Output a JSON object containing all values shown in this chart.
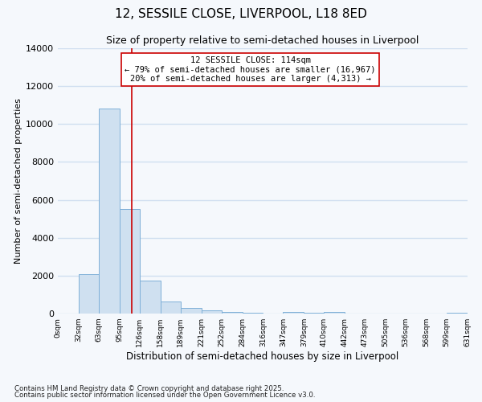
{
  "title": "12, SESSILE CLOSE, LIVERPOOL, L18 8ED",
  "subtitle": "Size of property relative to semi-detached houses in Liverpool",
  "xlabel": "Distribution of semi-detached houses by size in Liverpool",
  "ylabel": "Number of semi-detached properties",
  "bar_color": "#cfe0f0",
  "bar_edge_color": "#7fb0d8",
  "vline_value": 114,
  "vline_color": "#cc0000",
  "annotation_title": "12 SESSILE CLOSE: 114sqm",
  "annotation_line1": "← 79% of semi-detached houses are smaller (16,967)",
  "annotation_line2": "20% of semi-detached houses are larger (4,313) →",
  "bin_edges": [
    0,
    32,
    63,
    95,
    126,
    158,
    189,
    221,
    252,
    284,
    316,
    347,
    379,
    410,
    442,
    473,
    505,
    536,
    568,
    599,
    631
  ],
  "bin_counts": [
    0,
    2100,
    10800,
    5500,
    1750,
    650,
    310,
    150,
    80,
    30,
    10,
    100,
    50,
    70,
    20,
    10,
    0,
    0,
    0,
    50
  ],
  "ylim": [
    0,
    14000
  ],
  "yticks": [
    0,
    2000,
    4000,
    6000,
    8000,
    10000,
    12000,
    14000
  ],
  "background_color": "#f5f8fc",
  "grid_color": "#d0dff0",
  "footnote1": "Contains HM Land Registry data © Crown copyright and database right 2025.",
  "footnote2": "Contains public sector information licensed under the Open Government Licence v3.0."
}
